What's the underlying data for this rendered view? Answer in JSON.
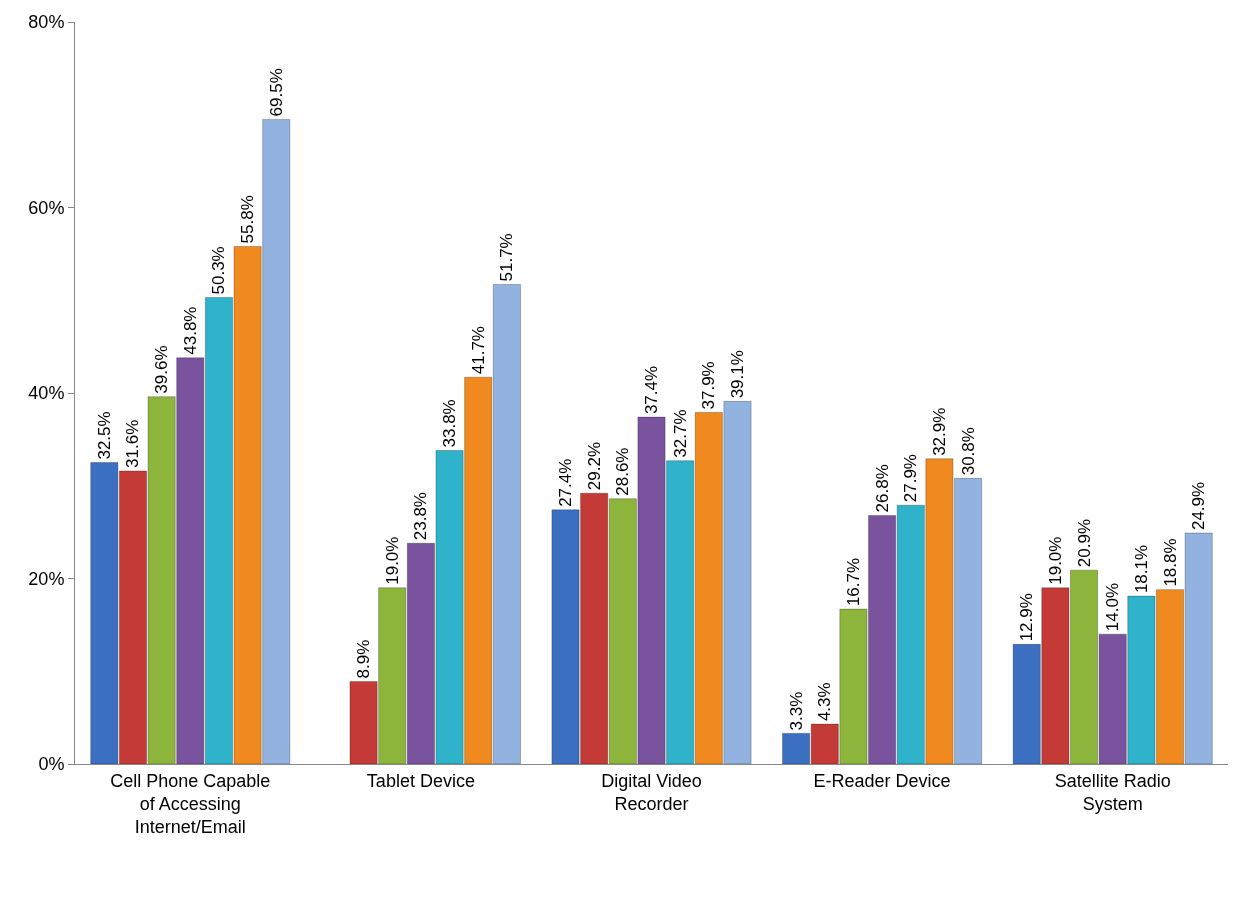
{
  "chart_data": {
    "type": "bar",
    "categories": [
      "Cell Phone Capable of Accessing Internet/Email",
      "Tablet Device",
      "Digital Video Recorder",
      "E-Reader Device",
      "Satellite Radio System"
    ],
    "ylim": [
      0,
      80
    ],
    "yticks": [
      {
        "value": 0,
        "label": "0%"
      },
      {
        "value": 20,
        "label": "20%"
      },
      {
        "value": 40,
        "label": "40%"
      },
      {
        "value": 60,
        "label": "60%"
      },
      {
        "value": 80,
        "label": "80%"
      }
    ],
    "grid": false,
    "series": [
      {
        "color": "#3b6fc2",
        "values": [
          32.5,
          null,
          27.4,
          3.3,
          12.9
        ],
        "value_labels": [
          "32.5%",
          null,
          "27.4%",
          "3.3%",
          "12.9%"
        ]
      },
      {
        "color": "#c43a36",
        "values": [
          31.6,
          8.9,
          29.2,
          4.3,
          19.0
        ],
        "value_labels": [
          "31.6%",
          "8.9%",
          "29.2%",
          "4.3%",
          "19.0%"
        ]
      },
      {
        "color": "#8db53c",
        "values": [
          39.6,
          19.0,
          28.6,
          16.7,
          20.9
        ],
        "value_labels": [
          "39.6%",
          "19.0%",
          "28.6%",
          "16.7%",
          "20.9%"
        ]
      },
      {
        "color": "#7a539f",
        "values": [
          43.8,
          23.8,
          37.4,
          26.8,
          14.0
        ],
        "value_labels": [
          "43.8%",
          "23.8%",
          "37.4%",
          "26.8%",
          "14.0%"
        ]
      },
      {
        "color": "#2fb3cb",
        "values": [
          50.3,
          33.8,
          32.7,
          27.9,
          18.1
        ],
        "value_labels": [
          "50.3%",
          "33.8%",
          "32.7%",
          "27.9%",
          "18.1%"
        ]
      },
      {
        "color": "#f08a1e",
        "values": [
          55.8,
          41.7,
          37.9,
          32.9,
          18.8
        ],
        "value_labels": [
          "55.8%",
          "41.7%",
          "37.9%",
          "32.9%",
          "18.8%"
        ]
      },
      {
        "color": "#92b2e0",
        "values": [
          69.5,
          51.7,
          39.1,
          30.8,
          24.9
        ],
        "value_labels": [
          "69.5%",
          "51.7%",
          "39.1%",
          "30.8%",
          "24.9%"
        ]
      }
    ]
  }
}
